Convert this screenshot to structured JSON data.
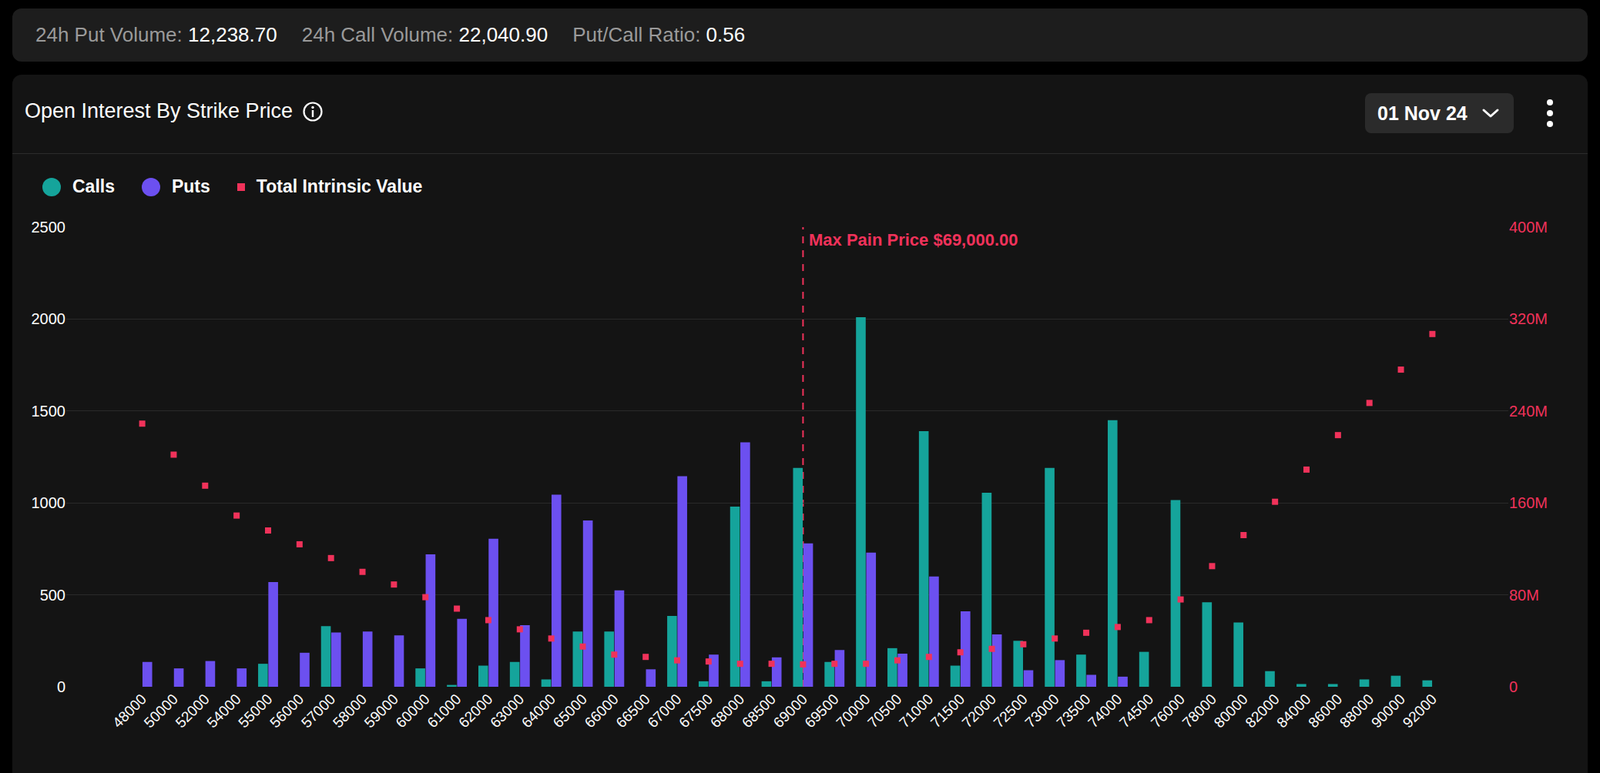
{
  "header": {
    "items": [
      {
        "label": "24h Put Volume:",
        "value": "12,238.70"
      },
      {
        "label": "24h Call Volume:",
        "value": "22,040.90"
      },
      {
        "label": "Put/Call Ratio:",
        "value": "0.56"
      }
    ]
  },
  "date_selector": "01 Nov 24",
  "chart_data": {
    "type": "bar",
    "title": "Open Interest By Strike Price",
    "categories": [
      "48000",
      "50000",
      "52000",
      "54000",
      "55000",
      "56000",
      "57000",
      "58000",
      "59000",
      "60000",
      "61000",
      "62000",
      "63000",
      "64000",
      "65000",
      "66000",
      "66500",
      "67000",
      "67500",
      "68000",
      "68500",
      "69000",
      "69500",
      "70000",
      "70500",
      "71000",
      "71500",
      "72000",
      "72500",
      "73000",
      "73500",
      "74000",
      "74500",
      "76000",
      "78000",
      "80000",
      "82000",
      "84000",
      "86000",
      "88000",
      "90000",
      "92000"
    ],
    "series": [
      {
        "name": "Calls",
        "color": "#15a49b",
        "values": [
          0,
          0,
          0,
          0,
          125,
          0,
          330,
          0,
          0,
          100,
          10,
          115,
          135,
          40,
          300,
          300,
          0,
          385,
          30,
          980,
          30,
          1190,
          135,
          2010,
          210,
          1390,
          115,
          1055,
          250,
          1190,
          175,
          1450,
          190,
          1015,
          460,
          350,
          85,
          15,
          15,
          40,
          60,
          35
        ]
      },
      {
        "name": "Puts",
        "color": "#6c50f0",
        "values": [
          135,
          100,
          140,
          100,
          570,
          185,
          295,
          300,
          280,
          720,
          370,
          805,
          335,
          1045,
          905,
          525,
          95,
          1145,
          175,
          1330,
          160,
          780,
          200,
          730,
          180,
          600,
          410,
          285,
          90,
          145,
          65,
          55,
          0,
          0,
          0,
          0,
          0,
          0,
          0,
          0,
          0,
          0
        ]
      },
      {
        "name": "Total Intrinsic Value",
        "type": "scatter",
        "marker": "square",
        "color": "#f0325a",
        "axis": "y2",
        "values": [
          229,
          202,
          175,
          149,
          136,
          124,
          112,
          100,
          89,
          78,
          68,
          58,
          50,
          42,
          35,
          28,
          26,
          23,
          22,
          20,
          20,
          19.5,
          20,
          20,
          23,
          26,
          30,
          33,
          37,
          42,
          47,
          52,
          58,
          76,
          105,
          132,
          161,
          189,
          219,
          247,
          276,
          307
        ]
      }
    ],
    "ylim": [
      0,
      2500
    ],
    "yticks": [
      0,
      500,
      1000,
      1500,
      2000,
      2500
    ],
    "y2lim": [
      0,
      400
    ],
    "y2ticks": [
      0,
      {
        "value": 80,
        "label": "80M"
      },
      {
        "value": 160,
        "label": "160M"
      },
      {
        "value": 240,
        "label": "240M"
      },
      {
        "value": 320,
        "label": "320M"
      },
      {
        "value": 400,
        "label": "400M"
      }
    ],
    "grid": true,
    "annotations": [
      {
        "text": "Max Pain Price $69,000.00",
        "category": "69000",
        "line_style": "dashed",
        "color": "#f0325a"
      }
    ]
  }
}
